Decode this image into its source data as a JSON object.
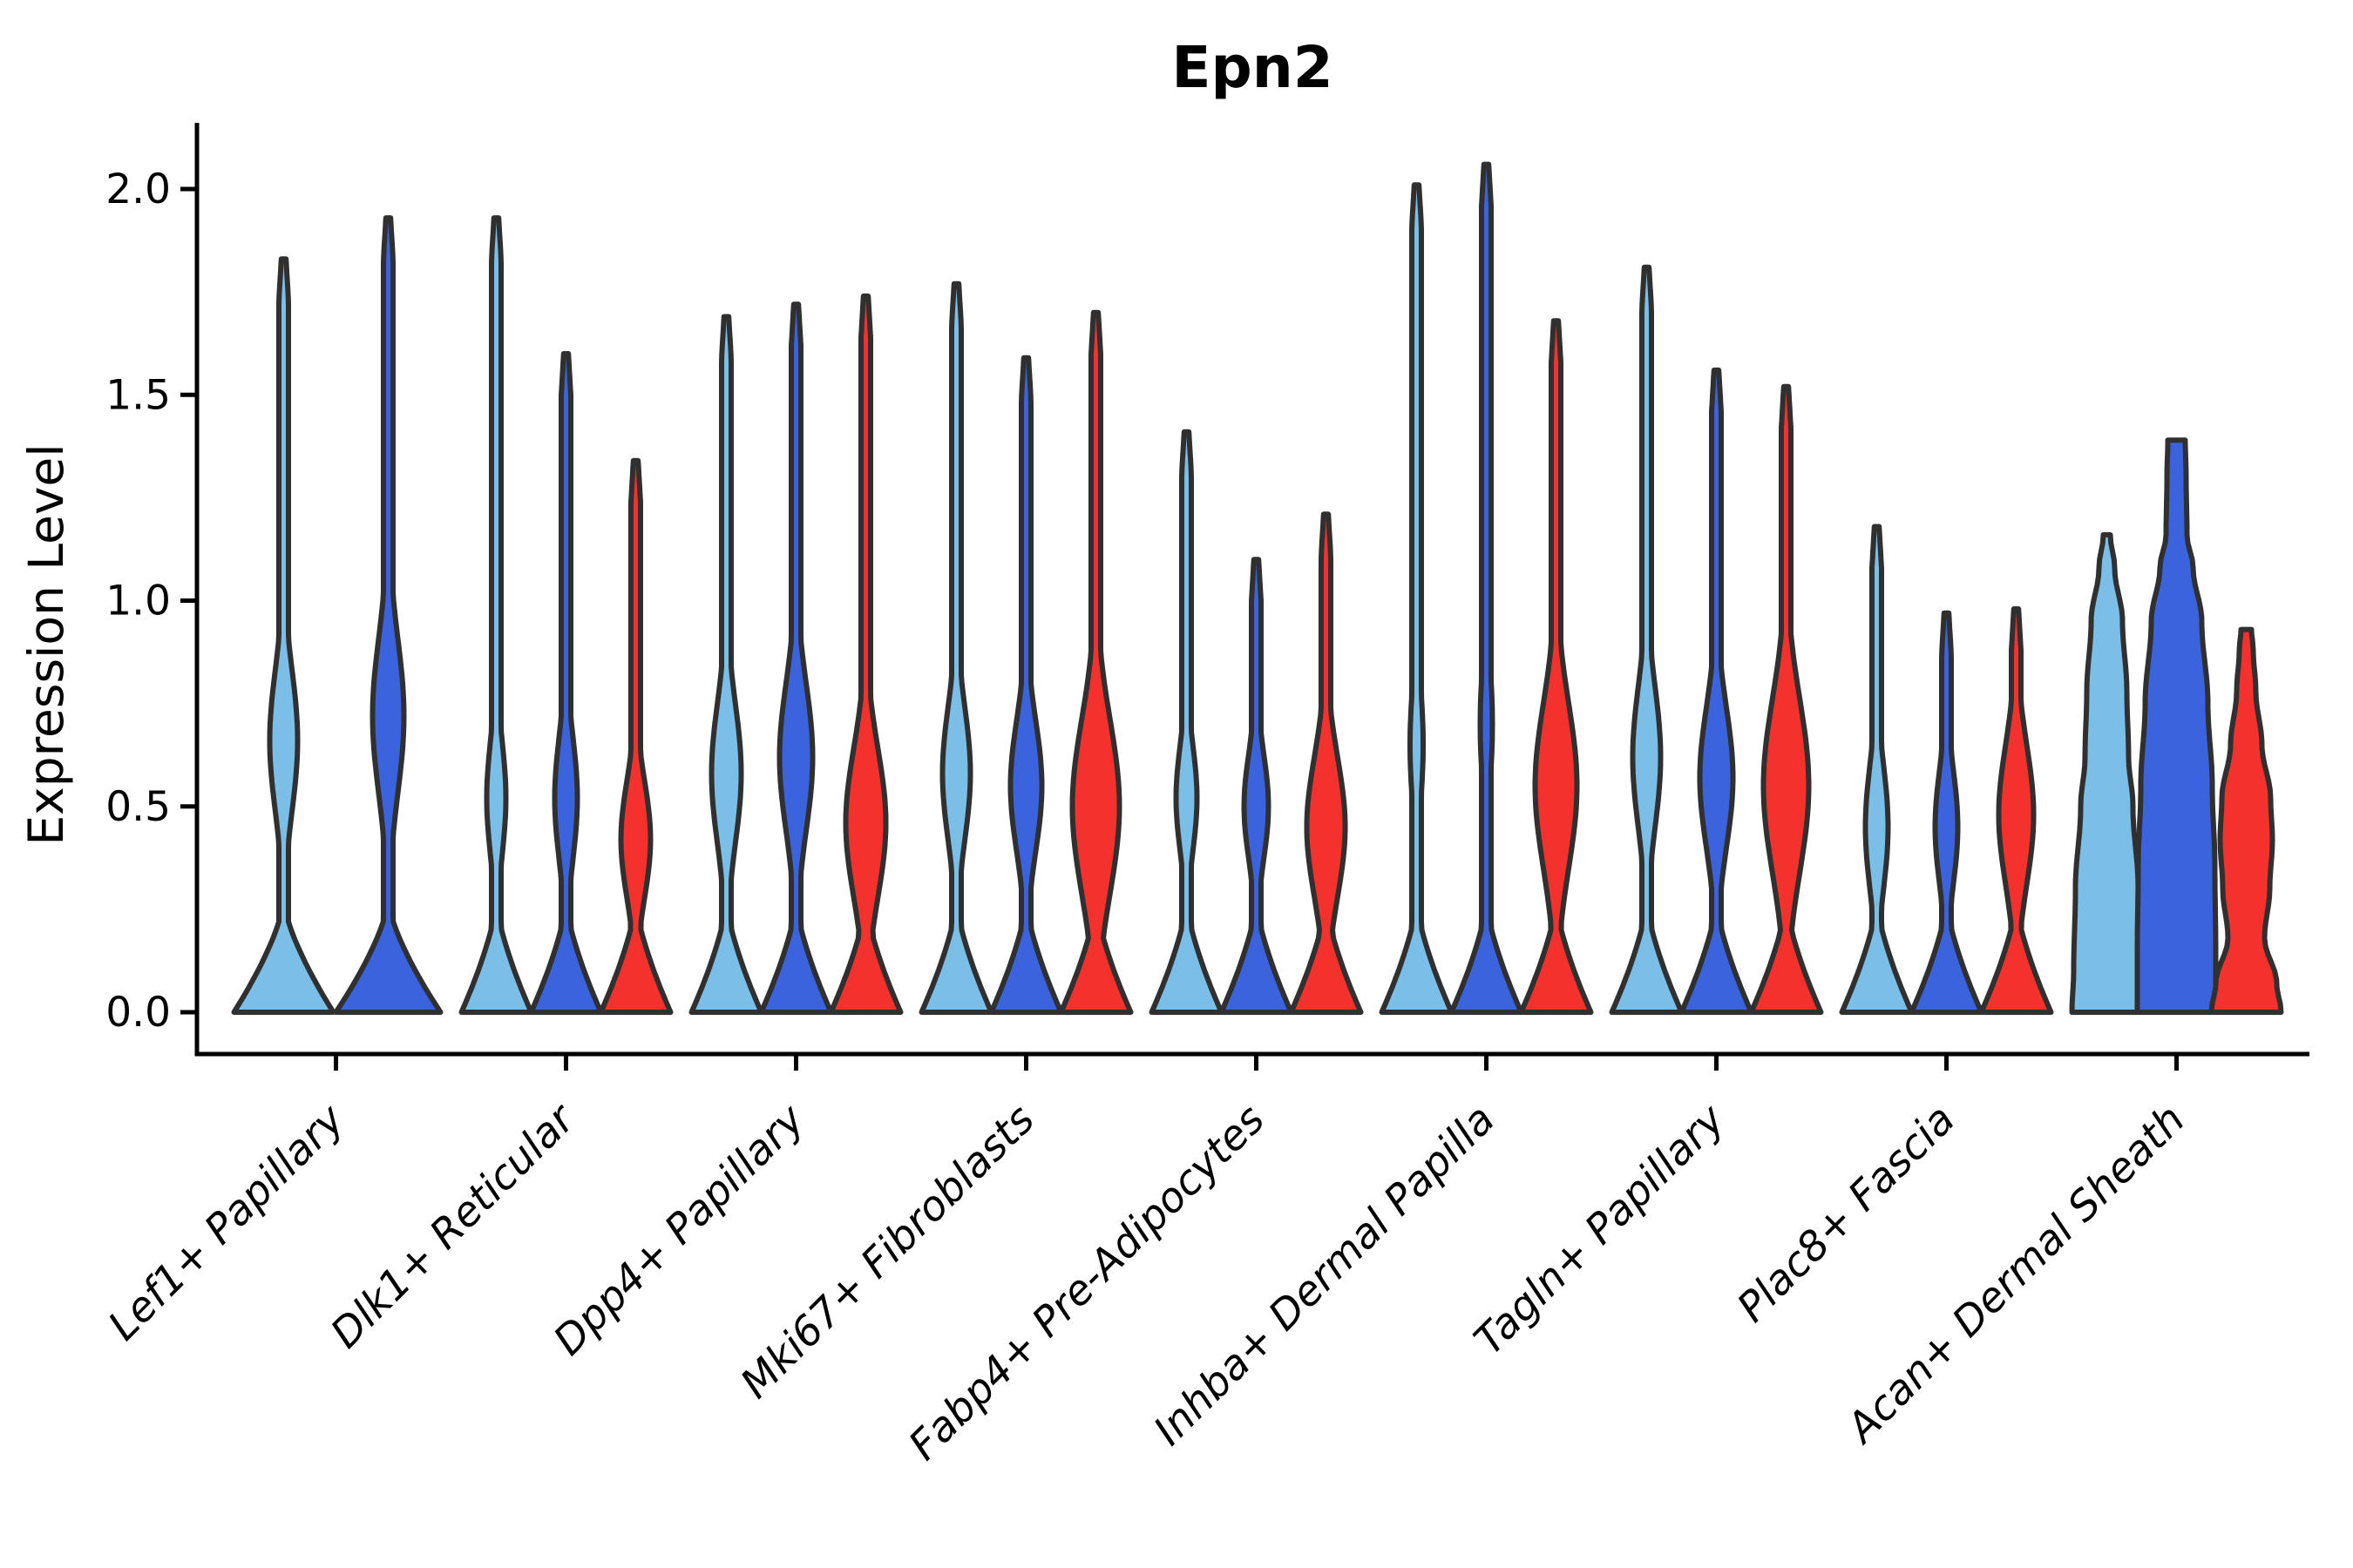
{
  "chart_data": {
    "type": "violin",
    "title": "Epn2",
    "ylabel": "Expression Level",
    "xlabel": "",
    "ylim": [
      0,
      2.15
    ],
    "grid": false,
    "legend": "none",
    "y_ticks": [
      "0.0",
      "0.5",
      "1.0",
      "1.5",
      "2.0"
    ],
    "y_tick_values": [
      0.0,
      0.5,
      1.0,
      1.5,
      2.0
    ],
    "split_colors": {
      "light-blue": "#7BBFE9",
      "dark-blue": "#3C63DE",
      "red": "#F5312D"
    },
    "outline_color": "#303030",
    "axis_color": "#000000",
    "groups": [
      {
        "label": "Lef1+ Papillary",
        "violins": [
          {
            "split": "light-blue",
            "max": 1.83,
            "mode": 0.66,
            "base_hw": 57,
            "bulge_hw": 16,
            "bulge_sig": 0.17
          },
          {
            "split": "dark-blue",
            "max": 1.93,
            "mode": 0.72,
            "base_hw": 60,
            "bulge_hw": 18,
            "bulge_sig": 0.19
          }
        ]
      },
      {
        "label": "Dlk1+ Reticular",
        "violins": [
          {
            "split": "light-blue",
            "max": 1.93,
            "mode": 0.52,
            "base_hw": 40,
            "bulge_hw": 11,
            "bulge_sig": 0.14
          },
          {
            "split": "dark-blue",
            "max": 1.6,
            "mode": 0.52,
            "base_hw": 40,
            "bulge_hw": 13,
            "bulge_sig": 0.15
          },
          {
            "split": "red",
            "max": 1.34,
            "mode": 0.42,
            "base_hw": 40,
            "bulge_hw": 17,
            "bulge_sig": 0.14
          }
        ]
      },
      {
        "label": "Dpp4+ Papillary",
        "violins": [
          {
            "split": "light-blue",
            "max": 1.69,
            "mode": 0.58,
            "base_hw": 40,
            "bulge_hw": 17,
            "bulge_sig": 0.17
          },
          {
            "split": "dark-blue",
            "max": 1.72,
            "mode": 0.62,
            "base_hw": 40,
            "bulge_hw": 19,
            "bulge_sig": 0.18
          },
          {
            "split": "red",
            "max": 1.74,
            "mode": 0.46,
            "base_hw": 40,
            "bulge_hw": 23,
            "bulge_sig": 0.18
          }
        ]
      },
      {
        "label": "Mki67+ Fibroblasts",
        "violins": [
          {
            "split": "light-blue",
            "max": 1.77,
            "mode": 0.58,
            "base_hw": 40,
            "bulge_hw": 16,
            "bulge_sig": 0.16
          },
          {
            "split": "dark-blue",
            "max": 1.59,
            "mode": 0.55,
            "base_hw": 40,
            "bulge_hw": 18,
            "bulge_sig": 0.16
          },
          {
            "split": "red",
            "max": 1.7,
            "mode": 0.5,
            "base_hw": 40,
            "bulge_hw": 27,
            "bulge_sig": 0.21
          }
        ]
      },
      {
        "label": "Fabp4+ Pre-Adipocytes",
        "violins": [
          {
            "split": "light-blue",
            "max": 1.41,
            "mode": 0.52,
            "base_hw": 40,
            "bulge_hw": 12,
            "bulge_sig": 0.13
          },
          {
            "split": "dark-blue",
            "max": 1.1,
            "mode": 0.5,
            "base_hw": 40,
            "bulge_hw": 14,
            "bulge_sig": 0.13
          },
          {
            "split": "red",
            "max": 1.21,
            "mode": 0.45,
            "base_hw": 40,
            "bulge_hw": 22,
            "bulge_sig": 0.17
          }
        ]
      },
      {
        "label": "Inhba+ Dermal Papilla",
        "violins": [
          {
            "split": "light-blue",
            "max": 2.01,
            "mode": 0.65,
            "base_hw": 40,
            "bulge_hw": 7.5,
            "bulge_sig": 0.15
          },
          {
            "split": "dark-blue",
            "max": 2.06,
            "mode": 0.7,
            "base_hw": 40,
            "bulge_hw": 7,
            "bulge_sig": 0.15
          },
          {
            "split": "red",
            "max": 1.68,
            "mode": 0.55,
            "base_hw": 40,
            "bulge_hw": 24,
            "bulge_sig": 0.2
          }
        ]
      },
      {
        "label": "Tagln+ Papillary",
        "violins": [
          {
            "split": "light-blue",
            "max": 1.81,
            "mode": 0.62,
            "base_hw": 40,
            "bulge_hw": 16,
            "bulge_sig": 0.17
          },
          {
            "split": "dark-blue",
            "max": 1.56,
            "mode": 0.57,
            "base_hw": 40,
            "bulge_hw": 19,
            "bulge_sig": 0.17
          },
          {
            "split": "red",
            "max": 1.52,
            "mode": 0.55,
            "base_hw": 40,
            "bulge_hw": 26,
            "bulge_sig": 0.21
          }
        ]
      },
      {
        "label": "Plac8+ Fascia",
        "violins": [
          {
            "split": "light-blue",
            "max": 1.18,
            "mode": 0.45,
            "base_hw": 40,
            "bulge_hw": 13,
            "bulge_sig": 0.15
          },
          {
            "split": "dark-blue",
            "max": 0.97,
            "mode": 0.45,
            "base_hw": 40,
            "bulge_hw": 13,
            "bulge_sig": 0.14
          },
          {
            "split": "red",
            "max": 0.98,
            "mode": 0.48,
            "base_hw": 40,
            "bulge_hw": 20,
            "bulge_sig": 0.17
          }
        ]
      },
      {
        "label": "Acan+ Dermal Sheath",
        "violins": [
          {
            "split": "light-blue",
            "max": 1.16,
            "mode": 0.35,
            "profile": [
              [
                0,
                40
              ],
              [
                0.1,
                38
              ],
              [
                0.3,
                36
              ],
              [
                0.5,
                30
              ],
              [
                0.62,
                25
              ],
              [
                0.78,
                23
              ],
              [
                0.95,
                18
              ],
              [
                1.08,
                9
              ],
              [
                1.16,
                4
              ]
            ]
          },
          {
            "split": "dark-blue",
            "max": 1.39,
            "mode": 0.25,
            "profile": [
              [
                0,
                45
              ],
              [
                0.15,
                45
              ],
              [
                0.35,
                44
              ],
              [
                0.55,
                41
              ],
              [
                0.75,
                36
              ],
              [
                0.95,
                29
              ],
              [
                1.08,
                19
              ],
              [
                1.16,
                12
              ],
              [
                1.3,
                11
              ],
              [
                1.39,
                10
              ]
            ]
          },
          {
            "split": "red",
            "max": 0.93,
            "mode": 0.45,
            "profile": [
              [
                0,
                40
              ],
              [
                0.07,
                35
              ],
              [
                0.18,
                21
              ],
              [
                0.3,
                27
              ],
              [
                0.42,
                30
              ],
              [
                0.52,
                28
              ],
              [
                0.65,
                18
              ],
              [
                0.78,
                11
              ],
              [
                0.88,
                8
              ],
              [
                0.93,
                6
              ]
            ]
          }
        ]
      }
    ]
  }
}
